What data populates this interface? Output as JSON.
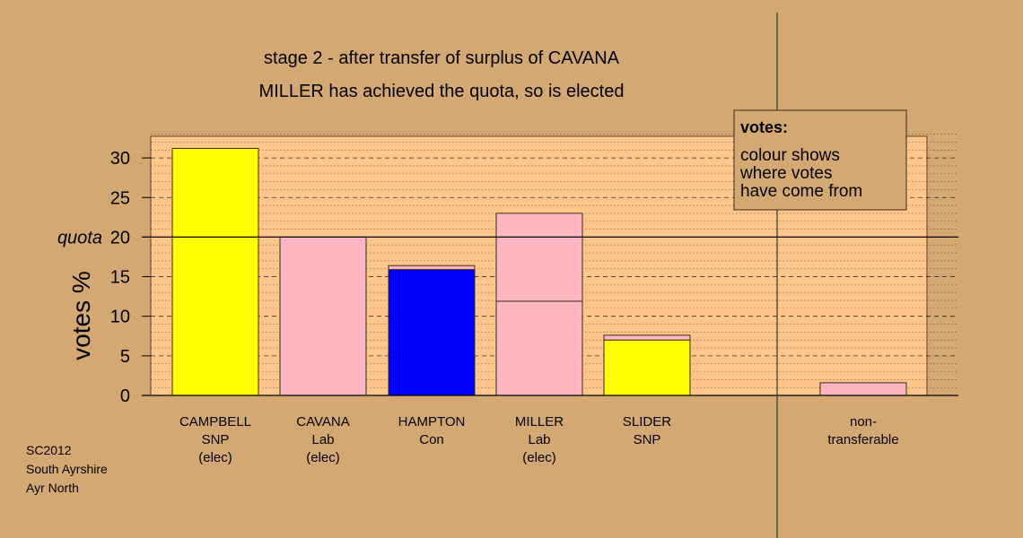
{
  "chart_data": {
    "type": "bar",
    "title": "stage 2 - after transfer of surplus of CAVANA",
    "subtitle": "MILLER has achieved the quota, so is elected",
    "ylabel": "votes %",
    "ylim": [
      0,
      33
    ],
    "yticks": [
      0,
      5,
      10,
      15,
      20,
      25,
      30
    ],
    "quota": {
      "label": "quota",
      "value": 20
    },
    "grid": true,
    "categories": [
      {
        "lines": [
          "CAMPBELL",
          "SNP",
          "(elec)"
        ],
        "segments": [
          {
            "value": 31.2,
            "color": "#ffff00"
          }
        ]
      },
      {
        "lines": [
          "CAVANA",
          "Lab",
          "(elec)"
        ],
        "segments": [
          {
            "value": 20.0,
            "color": "#ffb6c1"
          }
        ]
      },
      {
        "lines": [
          "HAMPTON",
          "Con"
        ],
        "segments": [
          {
            "value": 15.9,
            "color": "#0000ff"
          },
          {
            "value": 0.5,
            "color": "#ffb6c1"
          }
        ]
      },
      {
        "lines": [
          "MILLER",
          "Lab",
          "(elec)"
        ],
        "segments": [
          {
            "value": 11.9,
            "color": "#ffb6c1"
          },
          {
            "value": 11.1,
            "color": "#ffb6c1"
          }
        ]
      },
      {
        "lines": [
          "SLIDER",
          "SNP"
        ],
        "segments": [
          {
            "value": 7.0,
            "color": "#ffff00"
          },
          {
            "value": 0.6,
            "color": "#ffb6c1"
          }
        ]
      },
      {
        "lines": [
          "non-",
          "transferable"
        ],
        "segments": [
          {
            "value": 1.6,
            "color": "#ffb6c1"
          }
        ]
      }
    ],
    "legend": {
      "title": "votes:",
      "lines": [
        "colour shows",
        "where votes",
        "have come from"
      ],
      "placement": "top-right"
    },
    "footnote": [
      "SC2012",
      "South Ayrshire",
      "Ayr North"
    ],
    "colors": {
      "background": "#d4a872",
      "plot_background": "#ffc68c"
    }
  }
}
